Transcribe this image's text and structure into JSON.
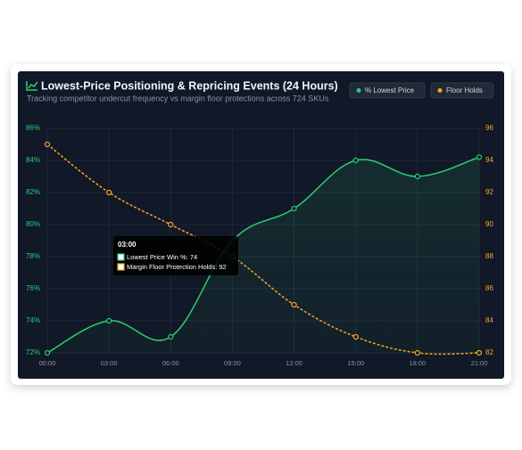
{
  "chart_data": {
    "type": "line",
    "title": "Lowest-Price Positioning & Repricing Events (24 Hours)",
    "subtitle": "Tracking competitor undercut frequency vs margin floor protections across 724 SKUs",
    "categories": [
      "00:00",
      "03:00",
      "06:00",
      "09:00",
      "12:00",
      "15:00",
      "18:00",
      "21:00"
    ],
    "series": [
      {
        "name": "% Lowest Price",
        "color": "#2ecc71",
        "values": [
          72,
          74,
          73,
          79,
          81,
          84,
          83,
          84.2
        ]
      },
      {
        "name": "Floor Holds",
        "color": "#f5a524",
        "axis": "y2",
        "values": [
          95,
          92,
          90,
          88,
          85,
          83,
          82,
          82
        ]
      }
    ],
    "ylim": [
      72,
      86
    ],
    "yticks": [
      {
        "value": 72,
        "label": "72%"
      },
      {
        "value": 74,
        "label": "74%"
      },
      {
        "value": 76,
        "label": "76%"
      },
      {
        "value": 78,
        "label": "78%"
      },
      {
        "value": 80,
        "label": "80%"
      },
      {
        "value": 82,
        "label": "82%"
      },
      {
        "value": 84,
        "label": "84%"
      },
      {
        "value": 86,
        "label": "86%"
      }
    ],
    "y2lim": [
      82,
      96
    ],
    "y2ticks": [
      82,
      84,
      86,
      88,
      90,
      92,
      94,
      96
    ],
    "grid": true,
    "legend": "top-right",
    "tooltip": {
      "title": "03:00",
      "lines": [
        "Lowest Price Win %: 74",
        "Margin Floor Protection Holds: 92"
      ]
    }
  }
}
